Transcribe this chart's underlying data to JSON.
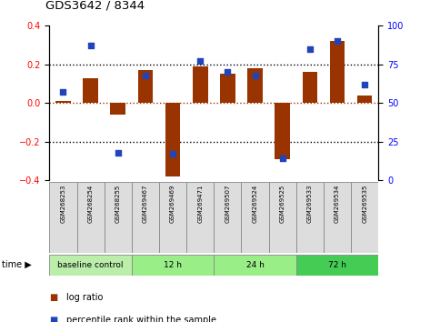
{
  "title": "GDS3642 / 8344",
  "samples": [
    "GSM268253",
    "GSM268254",
    "GSM268255",
    "GSM269467",
    "GSM269469",
    "GSM269471",
    "GSM269507",
    "GSM269524",
    "GSM269525",
    "GSM269533",
    "GSM269534",
    "GSM269535"
  ],
  "log_ratio": [
    0.01,
    0.13,
    -0.06,
    0.17,
    -0.38,
    0.19,
    0.15,
    0.18,
    -0.29,
    0.16,
    0.32,
    0.04
  ],
  "percentile_rank": [
    57,
    87,
    18,
    68,
    17,
    77,
    70,
    68,
    14,
    85,
    90,
    62
  ],
  "group_defs": [
    {
      "label": "baseline control",
      "start": 0,
      "end": 3,
      "color": "#bbeeaa"
    },
    {
      "label": "12 h",
      "start": 3,
      "end": 6,
      "color": "#99ee88"
    },
    {
      "label": "24 h",
      "start": 6,
      "end": 9,
      "color": "#99ee88"
    },
    {
      "label": "72 h",
      "start": 9,
      "end": 12,
      "color": "#44cc55"
    }
  ],
  "bar_color": "#993300",
  "dot_color": "#2244BB",
  "ylim_left": [
    -0.4,
    0.4
  ],
  "ylim_right": [
    0,
    100
  ],
  "yticks_left": [
    -0.4,
    -0.2,
    0.0,
    0.2,
    0.4
  ],
  "yticks_right": [
    0,
    25,
    50,
    75,
    100
  ],
  "dotted_lines_black": [
    -0.2,
    0.2
  ],
  "zero_line_color": "#993300",
  "background_color": "#ffffff"
}
